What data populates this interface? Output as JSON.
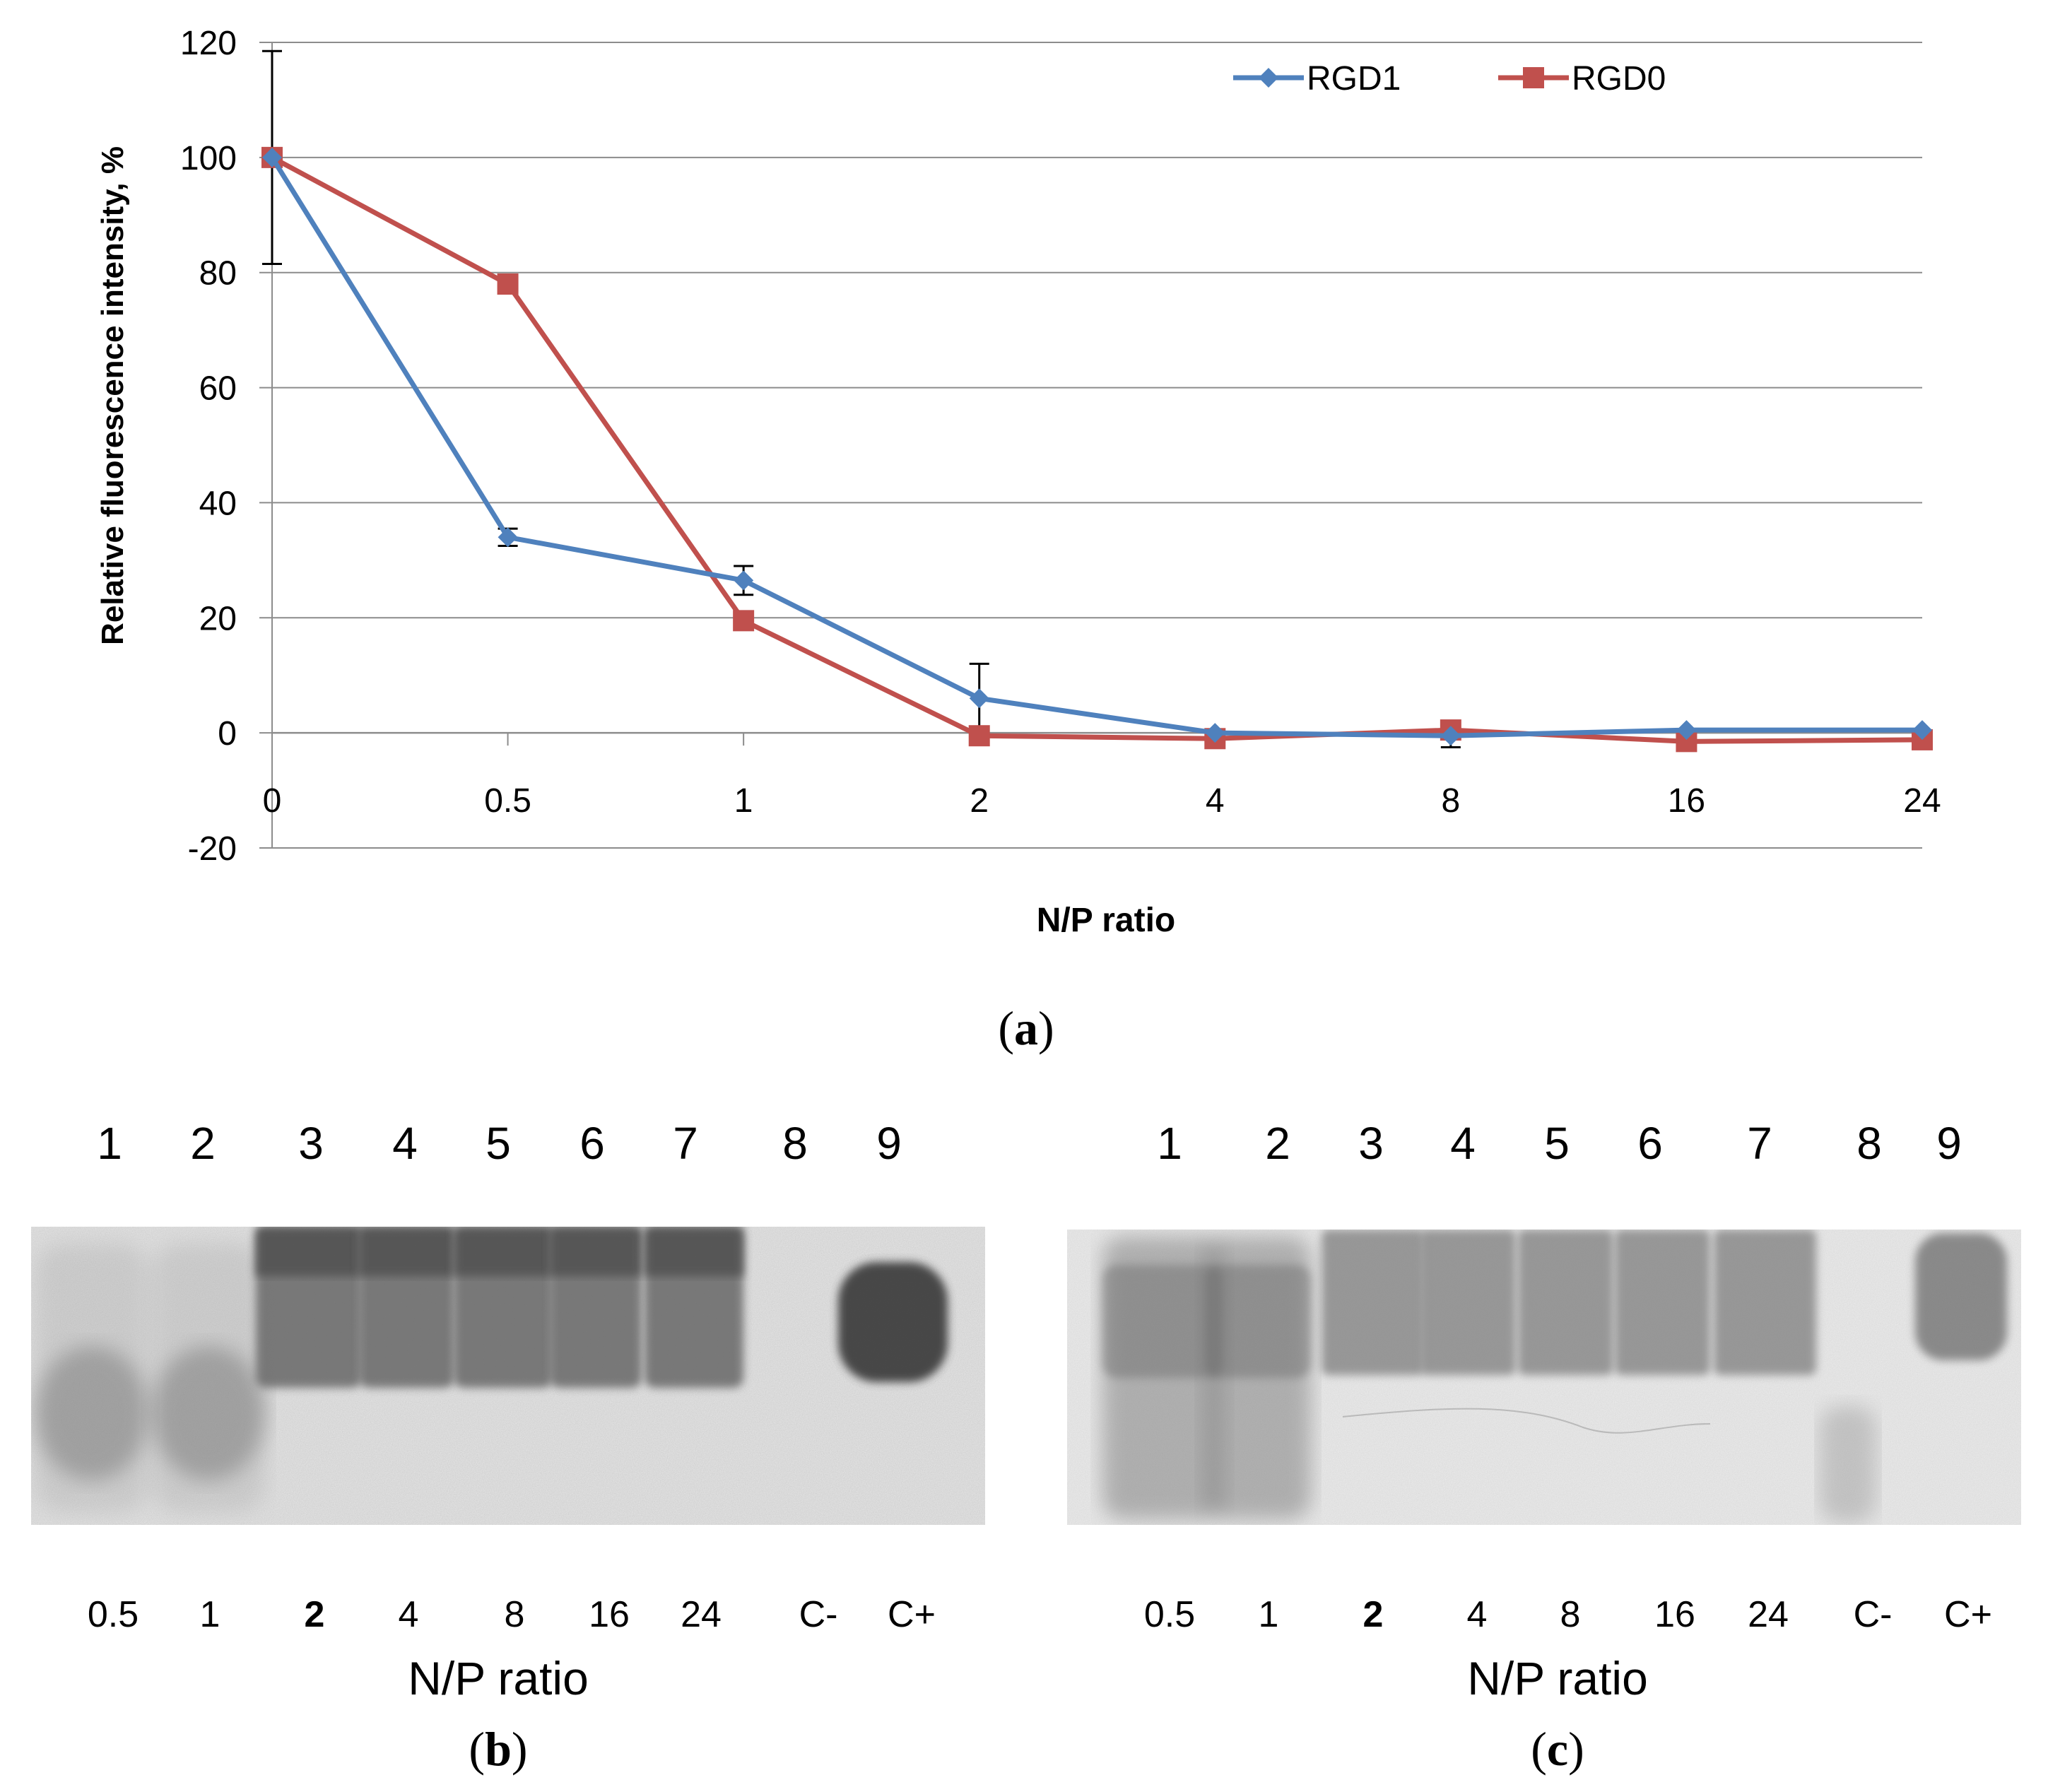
{
  "chart_data": {
    "type": "line",
    "x": [
      "0",
      "0.5",
      "1",
      "2",
      "4",
      "8",
      "16",
      "24"
    ],
    "ylabel": "Relative fluorescence intensity, %",
    "xlabel": "N/P ratio",
    "ylim": [
      -20,
      120
    ],
    "yticks": [
      -20,
      0,
      20,
      40,
      60,
      80,
      100,
      120
    ],
    "grid": true,
    "legend_position": "top-right",
    "series": [
      {
        "name": "RGD1",
        "color": "#4f81bd",
        "marker": "diamond",
        "values": [
          100,
          34,
          26.5,
          6,
          0,
          -0.5,
          0.5,
          0.5
        ],
        "errors": [
          18.5,
          1.5,
          2.5,
          6,
          0,
          2,
          0,
          0
        ]
      },
      {
        "name": "RGD0",
        "color": "#c0504d",
        "marker": "square",
        "values": [
          100,
          78,
          19.5,
          -0.5,
          -1,
          0.5,
          -1.5,
          -1.2
        ],
        "errors": [
          0,
          0,
          0,
          0,
          0,
          0,
          0,
          0
        ]
      }
    ],
    "panel_label": "a"
  },
  "gels": [
    {
      "panel_label": "b",
      "lane_numbers": [
        "1",
        "2",
        "3",
        "4",
        "5",
        "6",
        "7",
        "8",
        "9"
      ],
      "lane_labels": [
        "0.5",
        "1",
        "2",
        "4",
        "8",
        "16",
        "24",
        "C-",
        "C+"
      ],
      "xlabel": "N/P ratio"
    },
    {
      "panel_label": "c",
      "lane_numbers": [
        "1",
        "2",
        "3",
        "4",
        "5",
        "6",
        "7",
        "8",
        "9"
      ],
      "lane_labels": [
        "0.5",
        "1",
        "2",
        "4",
        "8",
        "16",
        "24",
        "C-",
        "C+"
      ],
      "xlabel": "N/P ratio"
    }
  ]
}
